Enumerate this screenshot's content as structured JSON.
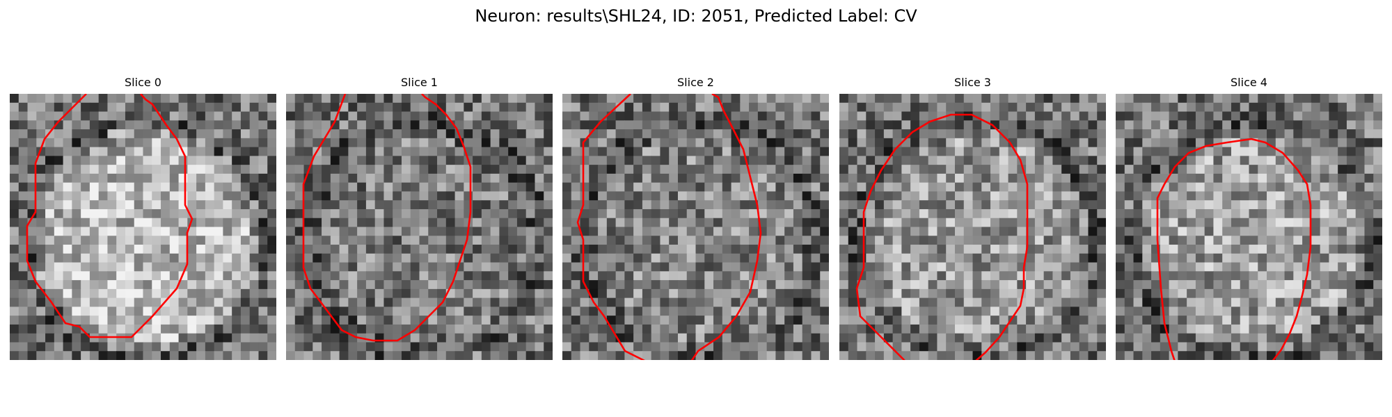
{
  "figure": {
    "title": "Neuron: results\\SHL24, ID: 2051, Predicted Label: CV"
  },
  "colors": {
    "background": "#ffffff",
    "contour": "#ff0000",
    "pixel_dark": "#1e1e1e",
    "pixel_light": "#ececec"
  },
  "slices": [
    {
      "label": "Slice 0",
      "seed": 11,
      "center_brightness": 0.72,
      "contour_kind": "closed"
    },
    {
      "label": "Slice 1",
      "seed": 23,
      "center_brightness": 0.48,
      "contour_kind": "closed"
    },
    {
      "label": "Slice 2",
      "seed": 37,
      "center_brightness": 0.52,
      "contour_kind": "open-top"
    },
    {
      "label": "Slice 3",
      "seed": 41,
      "center_brightness": 0.6,
      "contour_kind": "open-bottom"
    },
    {
      "label": "Slice 4",
      "seed": 53,
      "center_brightness": 0.62,
      "contour_kind": "arch"
    }
  ]
}
